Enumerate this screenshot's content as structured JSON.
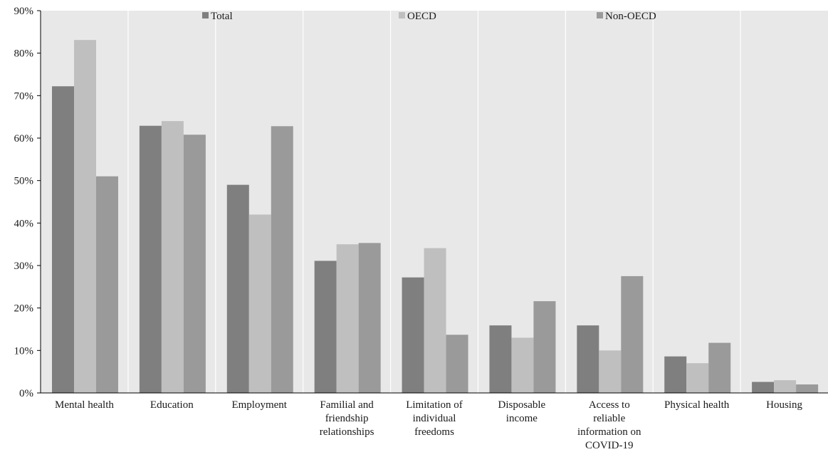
{
  "chart_data": {
    "type": "bar",
    "title": "",
    "xlabel": "",
    "ylabel": "",
    "ylim": [
      0,
      90
    ],
    "y_ticks": [
      0,
      10,
      20,
      30,
      40,
      50,
      60,
      70,
      80,
      90
    ],
    "y_tick_format": "{v}%",
    "grid": "vertical separators between categories",
    "legend_position": "top-inside",
    "categories": [
      "Mental health",
      "Education",
      "Employment",
      "Familial and friendship relationships",
      "Limitation of individual freedoms",
      "Disposable income",
      "Access to reliable information on COVID-19",
      "Physical health",
      "Housing"
    ],
    "category_label_lines": [
      [
        "Mental health"
      ],
      [
        "Education"
      ],
      [
        "Employment"
      ],
      [
        "Familial and",
        "friendship",
        "relationships"
      ],
      [
        "Limitation of",
        "individual",
        "freedoms"
      ],
      [
        "Disposable",
        "income"
      ],
      [
        "Access to",
        "reliable",
        "information on",
        "COVID-19"
      ],
      [
        "Physical health"
      ],
      [
        "Housing"
      ]
    ],
    "series": [
      {
        "name": "Total",
        "color": "#7f7f7f",
        "values": [
          72.2,
          62.9,
          49.0,
          31.1,
          27.2,
          15.9,
          15.9,
          8.6,
          2.6
        ]
      },
      {
        "name": "OECD",
        "color": "#bfbfbf",
        "values": [
          83.1,
          64.0,
          42.0,
          35.0,
          34.1,
          13.0,
          10.0,
          7.0,
          3.0
        ]
      },
      {
        "name": "Non-OECD",
        "color": "#9a9a9a",
        "values": [
          51.0,
          60.8,
          62.8,
          35.3,
          13.7,
          21.6,
          27.5,
          11.8,
          2.0
        ]
      }
    ]
  },
  "colors": {
    "plot_background": "#e8e8e8",
    "separator": "#ffffff",
    "axis": "#000000"
  }
}
